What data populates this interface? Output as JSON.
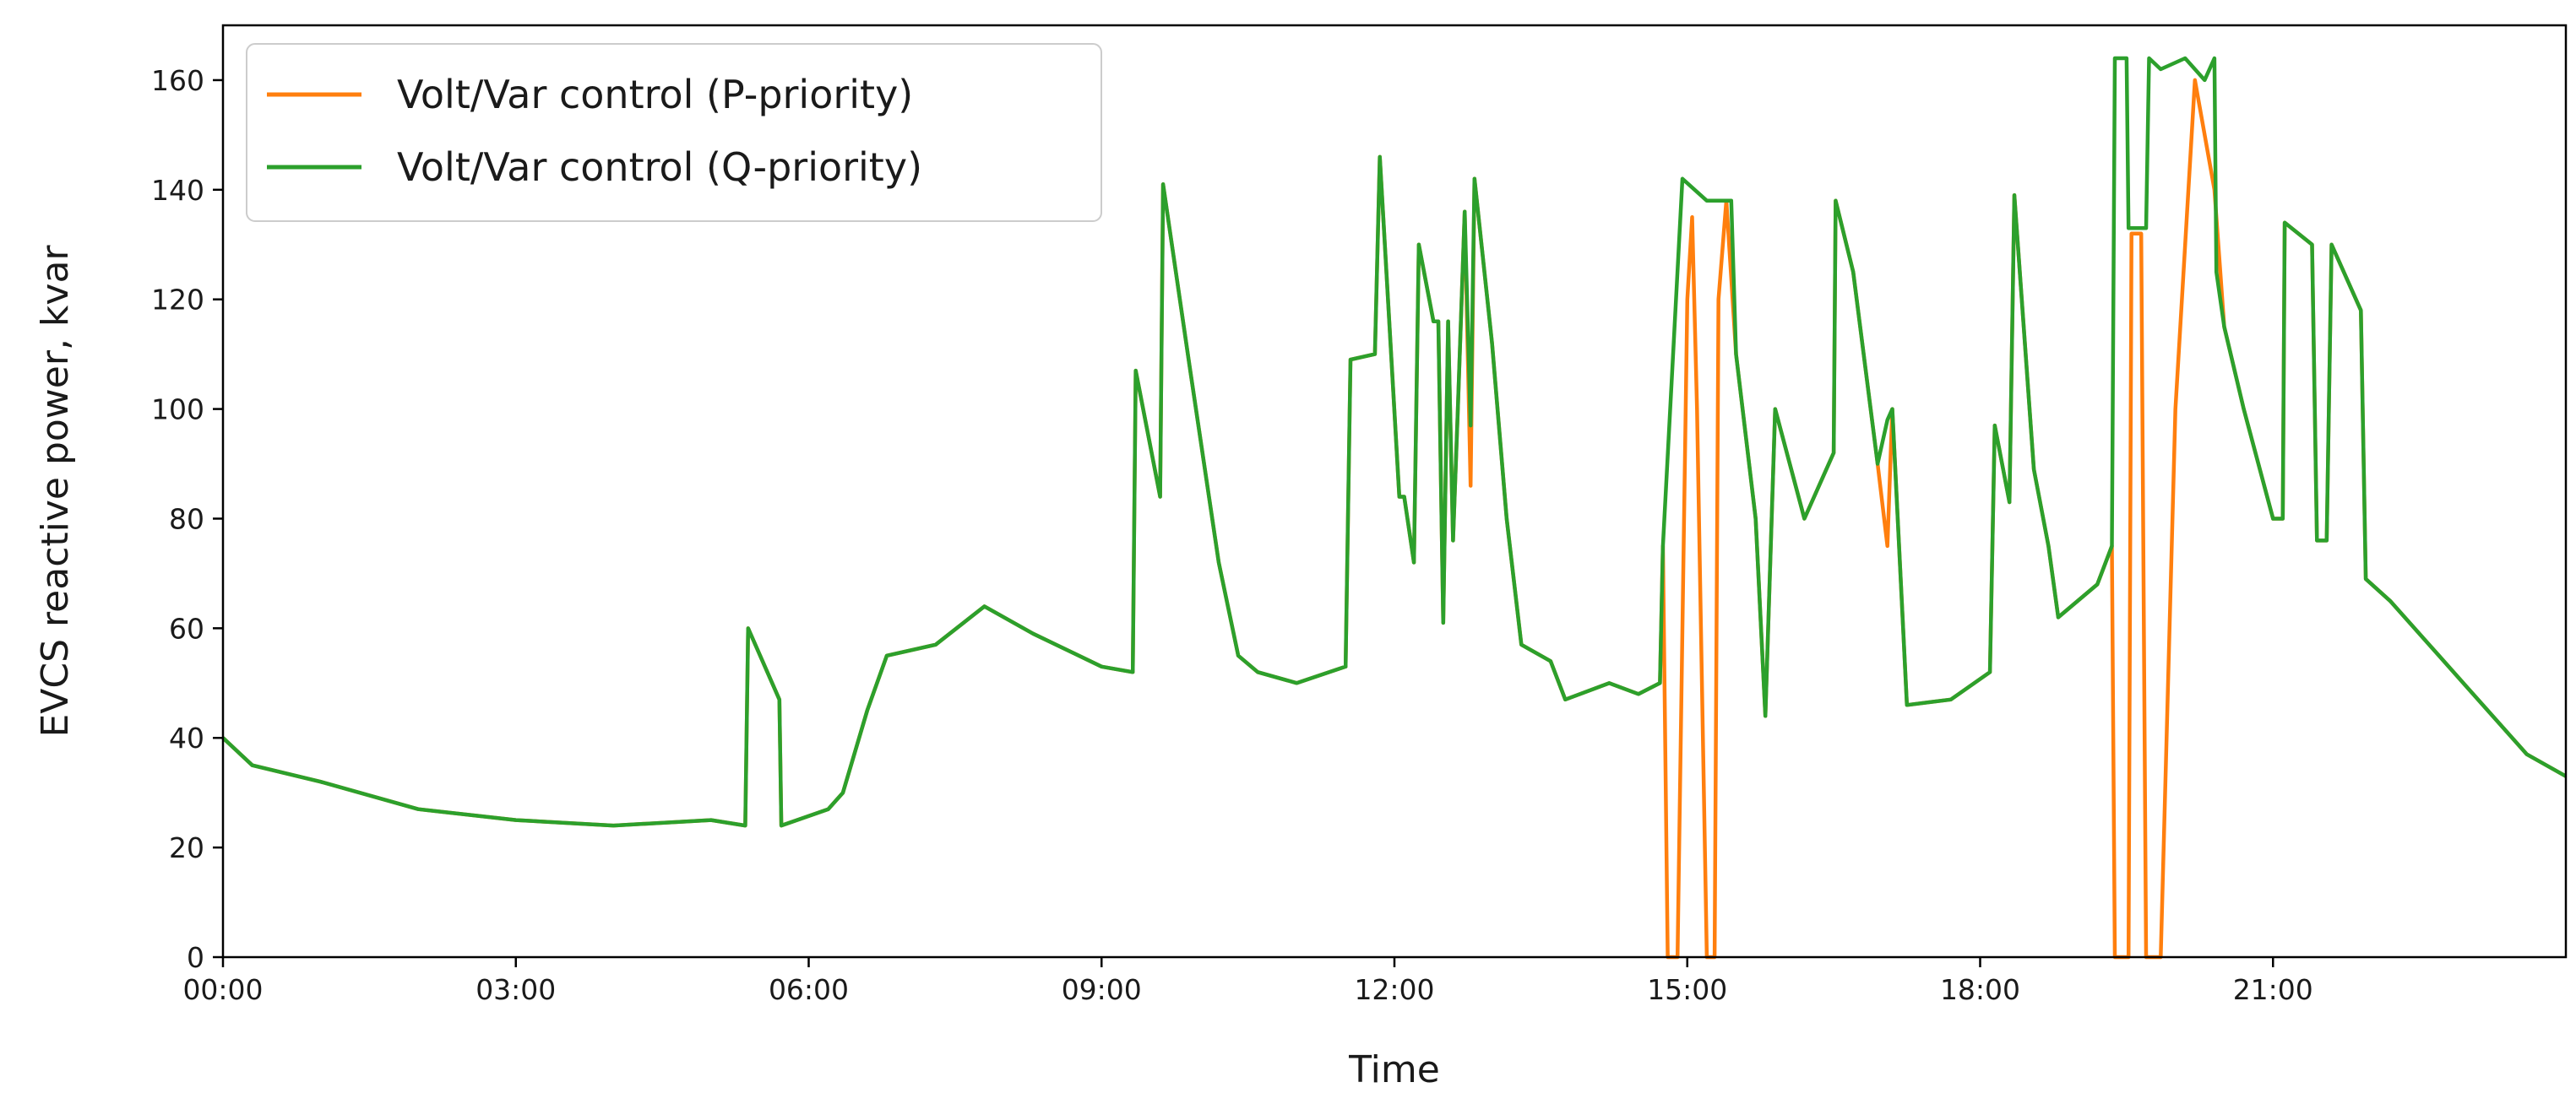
{
  "chart_data": {
    "type": "line",
    "xlabel": "Time",
    "ylabel": "EVCS reactive power, kvar",
    "x_unit": "hours",
    "xlim": [
      0,
      24
    ],
    "ylim": [
      0,
      170
    ],
    "x_ticks": [
      {
        "x": 0,
        "label": "00:00"
      },
      {
        "x": 3,
        "label": "03:00"
      },
      {
        "x": 6,
        "label": "06:00"
      },
      {
        "x": 9,
        "label": "09:00"
      },
      {
        "x": 12,
        "label": "12:00"
      },
      {
        "x": 15,
        "label": "15:00"
      },
      {
        "x": 18,
        "label": "18:00"
      },
      {
        "x": 21,
        "label": "21:00"
      }
    ],
    "y_ticks": [
      0,
      20,
      40,
      60,
      80,
      100,
      120,
      140,
      160
    ],
    "grid": false,
    "legend": {
      "placement": "top-left"
    },
    "series": [
      {
        "name": "Volt/Var control (P-priority)",
        "color": "#ff7f0e",
        "points": [
          [
            0,
            40
          ],
          [
            0.3,
            35
          ],
          [
            1,
            32
          ],
          [
            2,
            27
          ],
          [
            3,
            25
          ],
          [
            4,
            24
          ],
          [
            5,
            25
          ],
          [
            5.35,
            24
          ],
          [
            5.38,
            60
          ],
          [
            5.7,
            47
          ],
          [
            5.72,
            24
          ],
          [
            6.2,
            27
          ],
          [
            6.35,
            30
          ],
          [
            6.6,
            45
          ],
          [
            6.8,
            55
          ],
          [
            7.3,
            57
          ],
          [
            7.8,
            64
          ],
          [
            8.3,
            59
          ],
          [
            9.0,
            53
          ],
          [
            9.32,
            52
          ],
          [
            9.35,
            107
          ],
          [
            9.6,
            84
          ],
          [
            9.63,
            141
          ],
          [
            9.9,
            108
          ],
          [
            10.2,
            72
          ],
          [
            10.4,
            55
          ],
          [
            10.6,
            52
          ],
          [
            11,
            50
          ],
          [
            11.5,
            53
          ],
          [
            11.55,
            109
          ],
          [
            11.8,
            110
          ],
          [
            11.85,
            146
          ],
          [
            12.05,
            84
          ],
          [
            12.1,
            84
          ],
          [
            12.2,
            72
          ],
          [
            12.25,
            130
          ],
          [
            12.4,
            116
          ],
          [
            12.45,
            116
          ],
          [
            12.5,
            61
          ],
          [
            12.55,
            116
          ],
          [
            12.6,
            76
          ],
          [
            12.65,
            100
          ],
          [
            12.72,
            136
          ],
          [
            12.78,
            86
          ],
          [
            12.82,
            142
          ],
          [
            13.0,
            112
          ],
          [
            13.15,
            80
          ],
          [
            13.3,
            57
          ],
          [
            13.6,
            54
          ],
          [
            13.75,
            47
          ],
          [
            14.2,
            50
          ],
          [
            14.5,
            48
          ],
          [
            14.72,
            50
          ],
          [
            14.75,
            75
          ],
          [
            14.8,
            0
          ],
          [
            14.9,
            0
          ],
          [
            15.0,
            120
          ],
          [
            15.05,
            135
          ],
          [
            15.1,
            100
          ],
          [
            15.2,
            0
          ],
          [
            15.28,
            0
          ],
          [
            15.32,
            120
          ],
          [
            15.4,
            138
          ],
          [
            15.5,
            110
          ],
          [
            15.7,
            80
          ],
          [
            15.8,
            44
          ],
          [
            15.9,
            100
          ],
          [
            16.2,
            80
          ],
          [
            16.5,
            92
          ],
          [
            16.52,
            138
          ],
          [
            16.7,
            125
          ],
          [
            16.95,
            90
          ],
          [
            17.05,
            75
          ],
          [
            17.1,
            100
          ],
          [
            17.25,
            46
          ],
          [
            17.7,
            47
          ],
          [
            18.1,
            52
          ],
          [
            18.15,
            97
          ],
          [
            18.3,
            83
          ],
          [
            18.35,
            139
          ],
          [
            18.55,
            89
          ],
          [
            18.7,
            75
          ],
          [
            18.8,
            62
          ],
          [
            19.2,
            68
          ],
          [
            19.35,
            75
          ],
          [
            19.38,
            0
          ],
          [
            19.52,
            0
          ],
          [
            19.55,
            132
          ],
          [
            19.65,
            132
          ],
          [
            19.7,
            0
          ],
          [
            19.85,
            0
          ],
          [
            20.0,
            100
          ],
          [
            20.2,
            160
          ],
          [
            20.4,
            140
          ],
          [
            20.5,
            115
          ],
          [
            20.7,
            100
          ],
          [
            21.0,
            80
          ],
          [
            21.1,
            80
          ],
          [
            21.12,
            134
          ],
          [
            21.4,
            130
          ],
          [
            21.45,
            76
          ],
          [
            21.55,
            76
          ],
          [
            21.6,
            130
          ],
          [
            21.9,
            118
          ],
          [
            21.95,
            69
          ],
          [
            22.2,
            65
          ],
          [
            22.7,
            55
          ],
          [
            23.2,
            45
          ],
          [
            23.6,
            37
          ],
          [
            24,
            33
          ]
        ]
      },
      {
        "name": "Volt/Var control (Q-priority)",
        "color": "#2ca02c",
        "points": [
          [
            0,
            40
          ],
          [
            0.3,
            35
          ],
          [
            1,
            32
          ],
          [
            2,
            27
          ],
          [
            3,
            25
          ],
          [
            4,
            24
          ],
          [
            5,
            25
          ],
          [
            5.35,
            24
          ],
          [
            5.38,
            60
          ],
          [
            5.7,
            47
          ],
          [
            5.72,
            24
          ],
          [
            6.2,
            27
          ],
          [
            6.35,
            30
          ],
          [
            6.6,
            45
          ],
          [
            6.8,
            55
          ],
          [
            7.3,
            57
          ],
          [
            7.8,
            64
          ],
          [
            8.3,
            59
          ],
          [
            9.0,
            53
          ],
          [
            9.32,
            52
          ],
          [
            9.35,
            107
          ],
          [
            9.6,
            84
          ],
          [
            9.63,
            141
          ],
          [
            9.9,
            108
          ],
          [
            10.2,
            72
          ],
          [
            10.4,
            55
          ],
          [
            10.6,
            52
          ],
          [
            11,
            50
          ],
          [
            11.5,
            53
          ],
          [
            11.55,
            109
          ],
          [
            11.8,
            110
          ],
          [
            11.85,
            146
          ],
          [
            12.05,
            84
          ],
          [
            12.1,
            84
          ],
          [
            12.2,
            72
          ],
          [
            12.25,
            130
          ],
          [
            12.4,
            116
          ],
          [
            12.45,
            116
          ],
          [
            12.5,
            61
          ],
          [
            12.55,
            116
          ],
          [
            12.6,
            76
          ],
          [
            12.65,
            100
          ],
          [
            12.72,
            136
          ],
          [
            12.78,
            97
          ],
          [
            12.82,
            142
          ],
          [
            13.0,
            112
          ],
          [
            13.15,
            80
          ],
          [
            13.3,
            57
          ],
          [
            13.6,
            54
          ],
          [
            13.75,
            47
          ],
          [
            14.2,
            50
          ],
          [
            14.5,
            48
          ],
          [
            14.72,
            50
          ],
          [
            14.75,
            75
          ],
          [
            14.95,
            142
          ],
          [
            15.2,
            138
          ],
          [
            15.45,
            138
          ],
          [
            15.5,
            110
          ],
          [
            15.7,
            80
          ],
          [
            15.8,
            44
          ],
          [
            15.9,
            100
          ],
          [
            16.2,
            80
          ],
          [
            16.5,
            92
          ],
          [
            16.52,
            138
          ],
          [
            16.7,
            125
          ],
          [
            16.95,
            90
          ],
          [
            17.05,
            98
          ],
          [
            17.1,
            100
          ],
          [
            17.25,
            46
          ],
          [
            17.7,
            47
          ],
          [
            18.1,
            52
          ],
          [
            18.15,
            97
          ],
          [
            18.3,
            83
          ],
          [
            18.35,
            139
          ],
          [
            18.55,
            89
          ],
          [
            18.7,
            75
          ],
          [
            18.8,
            62
          ],
          [
            19.2,
            68
          ],
          [
            19.35,
            75
          ],
          [
            19.38,
            164
          ],
          [
            19.5,
            164
          ],
          [
            19.52,
            133
          ],
          [
            19.7,
            133
          ],
          [
            19.73,
            164
          ],
          [
            19.85,
            162
          ],
          [
            20.1,
            164
          ],
          [
            20.3,
            160
          ],
          [
            20.4,
            164
          ],
          [
            20.42,
            125
          ],
          [
            20.5,
            115
          ],
          [
            20.7,
            100
          ],
          [
            21.0,
            80
          ],
          [
            21.1,
            80
          ],
          [
            21.12,
            134
          ],
          [
            21.4,
            130
          ],
          [
            21.45,
            76
          ],
          [
            21.55,
            76
          ],
          [
            21.6,
            130
          ],
          [
            21.9,
            118
          ],
          [
            21.95,
            69
          ],
          [
            22.2,
            65
          ],
          [
            22.7,
            55
          ],
          [
            23.2,
            45
          ],
          [
            23.6,
            37
          ],
          [
            24,
            33
          ]
        ]
      }
    ]
  }
}
